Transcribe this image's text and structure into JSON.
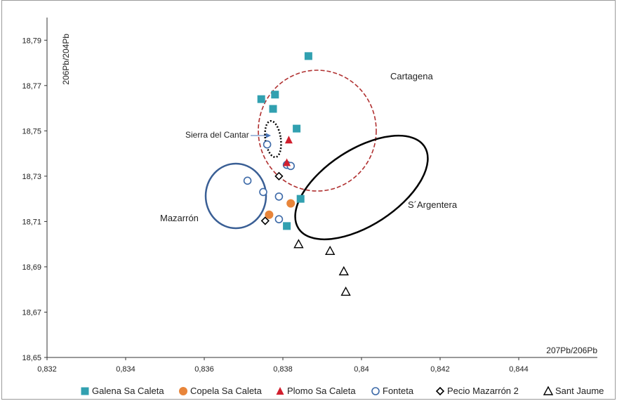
{
  "chart_data": {
    "type": "scatter",
    "xlabel": "207Pb/206Pb",
    "ylabel": "206Pb/204Pb",
    "xlim": [
      0.832,
      0.846
    ],
    "ylim": [
      18.65,
      18.8
    ],
    "x_ticks": [
      "0,832",
      "0,834",
      "0,836",
      "0,838",
      "0,84",
      "0,842",
      "0,844"
    ],
    "y_ticks": [
      "18,65",
      "18,67",
      "18,69",
      "18,71",
      "18,73",
      "18,75",
      "18,77",
      "18,79"
    ],
    "grid": false,
    "legend_position": "bottom",
    "series": [
      {
        "name": "Galena Sa Caleta",
        "marker": "square",
        "color": "#31a0b0",
        "points": [
          [
            0.83865,
            18.783
          ],
          [
            0.83745,
            18.764
          ],
          [
            0.83775,
            18.7597
          ],
          [
            0.8378,
            18.766
          ],
          [
            0.83835,
            18.751
          ],
          [
            0.83845,
            18.72
          ],
          [
            0.8381,
            18.708
          ]
        ]
      },
      {
        "name": "Copela Sa Caleta",
        "marker": "circle",
        "color": "#e8853a",
        "points": [
          [
            0.83765,
            18.713
          ],
          [
            0.8382,
            18.718
          ]
        ]
      },
      {
        "name": "Plomo Sa Caleta",
        "marker": "triangle",
        "color": "#d11f2e",
        "points": [
          [
            0.83815,
            18.746
          ],
          [
            0.8381,
            18.736
          ]
        ]
      },
      {
        "name": "Fonteta",
        "marker": "open-circle",
        "color": "#3d6aa8",
        "points": [
          [
            0.8376,
            18.744
          ],
          [
            0.8371,
            18.728
          ],
          [
            0.8375,
            18.723
          ],
          [
            0.8379,
            18.721
          ],
          [
            0.8379,
            18.711
          ],
          [
            0.8381,
            18.735
          ],
          [
            0.8382,
            18.7345
          ]
        ]
      },
      {
        "name": "Pecio Mazarrón 2",
        "marker": "open-diamond",
        "color": "#000000",
        "points": [
          [
            0.8379,
            18.73
          ],
          [
            0.83755,
            18.7103
          ]
        ]
      },
      {
        "name": "Sant Jaume",
        "marker": "open-triangle",
        "color": "#000000",
        "points": [
          [
            0.8384,
            18.7
          ],
          [
            0.8392,
            18.697
          ],
          [
            0.83955,
            18.688
          ],
          [
            0.8396,
            18.679
          ]
        ]
      }
    ],
    "annotations": [
      {
        "text": "Cartagena",
        "type": "region",
        "color": "#b03030"
      },
      {
        "text": "Sierra del Cantar",
        "type": "region",
        "color": "#000000"
      },
      {
        "text": "Mazarrón",
        "type": "region",
        "color": "#3a5f95"
      },
      {
        "text": "S´Argentera",
        "type": "region",
        "color": "#000000"
      }
    ]
  }
}
